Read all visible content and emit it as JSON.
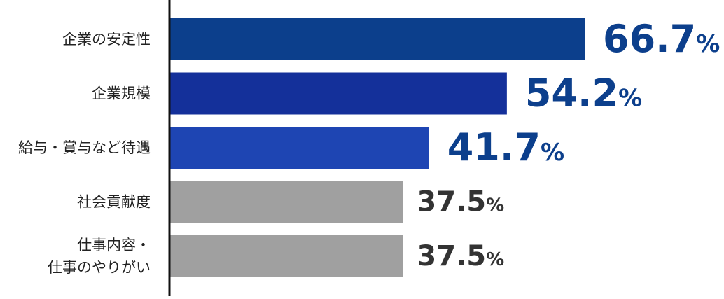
{
  "chart_data": {
    "type": "bar",
    "orientation": "horizontal",
    "categories": [
      [
        "企業の安定性"
      ],
      [
        "企業規模"
      ],
      [
        "給与・賞与など待遇"
      ],
      [
        "社会貢献度"
      ],
      [
        "仕事内容・",
        "仕事のやりがい"
      ]
    ],
    "values": [
      66.7,
      54.2,
      41.7,
      37.5,
      37.5
    ],
    "value_labels": [
      "66.7",
      "54.2",
      "41.7",
      "37.5",
      "37.5"
    ],
    "unit": "%",
    "xlim": [
      0,
      100
    ],
    "bar_colors": [
      "#0c3f8c",
      "#14309a",
      "#1e45b3",
      "#a0a0a0",
      "#a0a0a0"
    ],
    "label_colors": [
      "#0c3f8c",
      "#0c3f8c",
      "#0c3f8c",
      "#333333",
      "#333333"
    ],
    "highlighted": [
      true,
      true,
      true,
      false,
      false
    ],
    "axis_color": "#111111",
    "category_label_color": "#222222"
  }
}
